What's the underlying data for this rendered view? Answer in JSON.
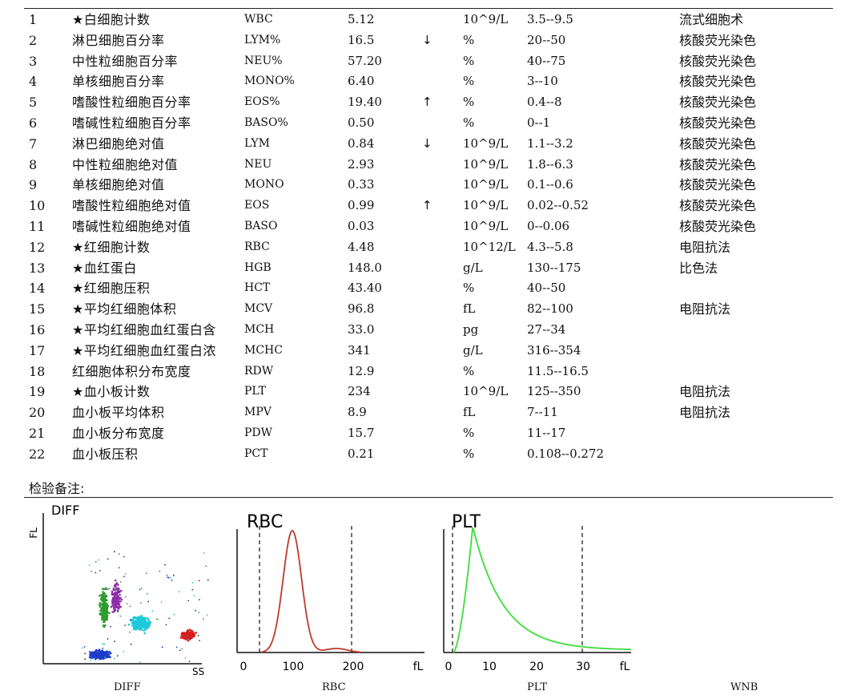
{
  "rows": [
    {
      "no": "1",
      "name": "★白细胞计数",
      "code": "WBC",
      "value": "5.12",
      "flag": "",
      "unit": "10^9/L",
      "range": "3.5--9.5",
      "method": "流式细胞术"
    },
    {
      "no": "2",
      "name": "淋巴细胞百分率",
      "code": "LYM%",
      "value": "16.5",
      "flag": "↓",
      "unit": "%",
      "range": "20--50",
      "method": "核酸荧光染色"
    },
    {
      "no": "3",
      "name": "中性粒细胞百分率",
      "code": "NEU%",
      "value": "57.20",
      "flag": "",
      "unit": "%",
      "range": "40--75",
      "method": "核酸荧光染色"
    },
    {
      "no": "4",
      "name": "单核细胞百分率",
      "code": "MONO%",
      "value": "6.40",
      "flag": "",
      "unit": "%",
      "range": "3--10",
      "method": "核酸荧光染色"
    },
    {
      "no": "5",
      "name": "嗜酸性粒细胞百分率",
      "code": "EOS%",
      "value": "19.40",
      "flag": "↑",
      "unit": "%",
      "range": "0.4--8",
      "method": "核酸荧光染色"
    },
    {
      "no": "6",
      "name": "嗜碱性粒细胞百分率",
      "code": "BASO%",
      "value": "0.50",
      "flag": "",
      "unit": "%",
      "range": "0--1",
      "method": "核酸荧光染色"
    },
    {
      "no": "7",
      "name": "淋巴细胞绝对值",
      "code": "LYM",
      "value": "0.84",
      "flag": "↓",
      "unit": "10^9/L",
      "range": "1.1--3.2",
      "method": "核酸荧光染色"
    },
    {
      "no": "8",
      "name": "中性粒细胞绝对值",
      "code": "NEU",
      "value": "2.93",
      "flag": "",
      "unit": "10^9/L",
      "range": "1.8--6.3",
      "method": "核酸荧光染色"
    },
    {
      "no": "9",
      "name": "单核细胞绝对值",
      "code": "MONO",
      "value": "0.33",
      "flag": "",
      "unit": "10^9/L",
      "range": "0.1--0.6",
      "method": "核酸荧光染色"
    },
    {
      "no": "10",
      "name": "嗜酸性粒细胞绝对值",
      "code": "EOS",
      "value": "0.99",
      "flag": "↑",
      "unit": "10^9/L",
      "range": "0.02--0.52",
      "method": "核酸荧光染色"
    },
    {
      "no": "11",
      "name": "嗜碱性粒细胞绝对值",
      "code": "BASO",
      "value": "0.03",
      "flag": "",
      "unit": "10^9/L",
      "range": "0--0.06",
      "method": "核酸荧光染色"
    },
    {
      "no": "12",
      "name": "★红细胞计数",
      "code": "RBC",
      "value": "4.48",
      "flag": "",
      "unit": "10^12/L",
      "range": "4.3--5.8",
      "method": "电阻抗法"
    },
    {
      "no": "13",
      "name": "★血红蛋白",
      "code": "HGB",
      "value": "148.0",
      "flag": "",
      "unit": "g/L",
      "range": "130--175",
      "method": "比色法"
    },
    {
      "no": "14",
      "name": "★红细胞压积",
      "code": "HCT",
      "value": "43.40",
      "flag": "",
      "unit": "%",
      "range": "40--50",
      "method": ""
    },
    {
      "no": "15",
      "name": "★平均红细胞体积",
      "code": "MCV",
      "value": "96.8",
      "flag": "",
      "unit": "fL",
      "range": "82--100",
      "method": "电阻抗法"
    },
    {
      "no": "16",
      "name": "★平均红细胞血红蛋白含",
      "code": "MCH",
      "value": "33.0",
      "flag": "",
      "unit": "pg",
      "range": "27--34",
      "method": ""
    },
    {
      "no": "17",
      "name": "★平均红细胞血红蛋白浓",
      "code": "MCHC",
      "value": "341",
      "flag": "",
      "unit": "g/L",
      "range": "316--354",
      "method": ""
    },
    {
      "no": "18",
      "name": "红细胞体积分布宽度",
      "code": "RDW",
      "value": "12.9",
      "flag": "",
      "unit": "%",
      "range": "11.5--16.5",
      "method": ""
    },
    {
      "no": "19",
      "name": "★血小板计数",
      "code": "PLT",
      "value": "234",
      "flag": "",
      "unit": "10^9/L",
      "range": "125--350",
      "method": "电阻抗法"
    },
    {
      "no": "20",
      "name": "血小板平均体积",
      "code": "MPV",
      "value": "8.9",
      "flag": "",
      "unit": "fL",
      "range": "7--11",
      "method": "电阻抗法"
    },
    {
      "no": "21",
      "name": "血小板分布宽度",
      "code": "PDW",
      "value": "15.7",
      "flag": "",
      "unit": "%",
      "range": "11--17",
      "method": ""
    },
    {
      "no": "22",
      "name": "血小板压积",
      "code": "PCT",
      "value": "0.21",
      "flag": "",
      "unit": "%",
      "range": "0.108--0.272",
      "method": ""
    }
  ],
  "remark_label": "检验备注:",
  "plots": {
    "diff": {
      "title": "DIFF",
      "y_axis": "FL",
      "x_axis": "SS",
      "caption": "DIFF"
    },
    "rbc": {
      "title": "RBC",
      "ticks": [
        "0",
        "100",
        "200",
        "fL"
      ],
      "caption": "RBC",
      "color": "#c0392b"
    },
    "plt": {
      "title": "PLT",
      "ticks": [
        "0",
        "10",
        "20",
        "30",
        "fL"
      ],
      "caption": "PLT",
      "color": "#3ddc3d"
    },
    "wnb": {
      "caption": "WNB"
    }
  },
  "colors": {
    "mono": "#8e2ea8",
    "lym": "#2d9c2d",
    "neu": "#1ec8d8",
    "eos": "#d81e1e",
    "baso": "#1e3cc8"
  }
}
